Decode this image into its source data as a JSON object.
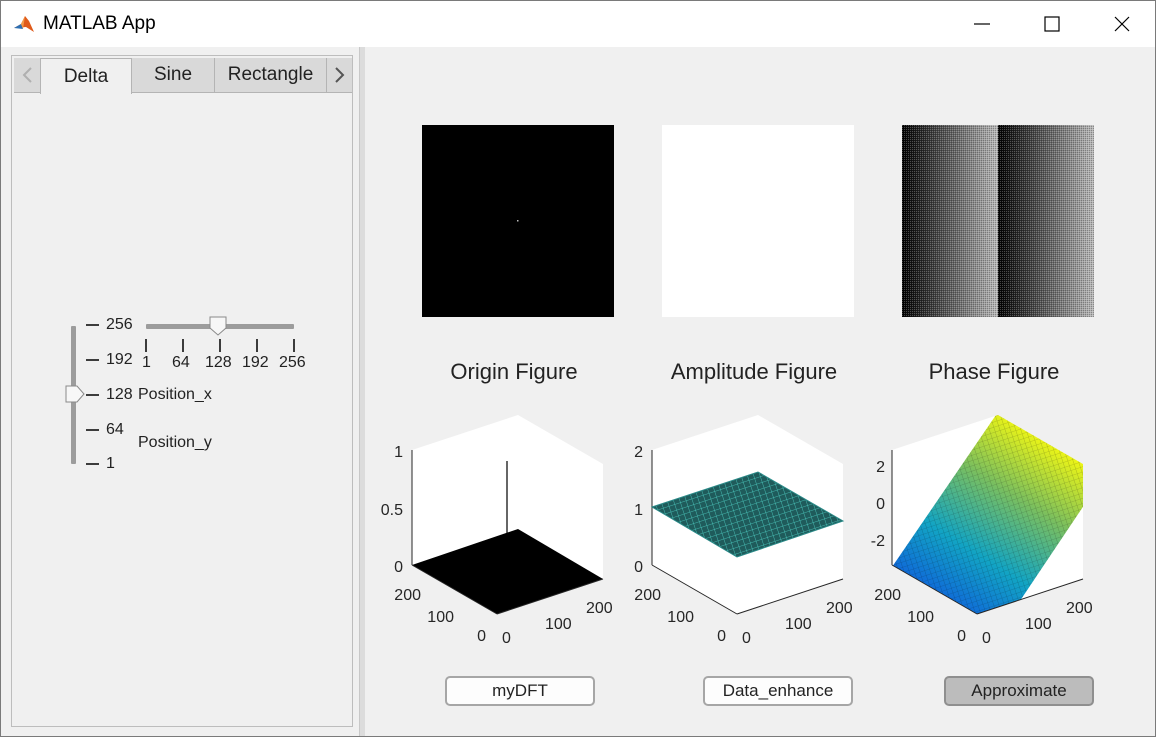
{
  "window": {
    "title": "MATLAB App",
    "app_icon": "matlab-icon",
    "controls": [
      "minimize-icon",
      "maximize-icon",
      "close-icon"
    ]
  },
  "tabs": {
    "prev_icon": "chevron-left-icon",
    "next_icon": "chevron-right-icon",
    "items": [
      {
        "label": "Delta",
        "active": true
      },
      {
        "label": "Sine",
        "active": false
      },
      {
        "label": "Rectangle",
        "active": false
      }
    ]
  },
  "sliders": {
    "position_x": {
      "label": "Position_x",
      "min": 1,
      "max": 256,
      "value": 128,
      "ticks": [
        "1",
        "64",
        "128",
        "192",
        "256"
      ]
    },
    "position_y": {
      "label": "Position_y",
      "min": 1,
      "max": 256,
      "value": 128,
      "ticks": [
        "256",
        "192",
        "128",
        "64",
        "1"
      ]
    }
  },
  "figures": {
    "origin": {
      "title": "Origin Figure",
      "colors": {
        "bg": "#000000",
        "dot": "#bbbbbb"
      }
    },
    "amplitude": {
      "title": "Amplitude Figure",
      "colors": {
        "bg": "#ffffff"
      }
    },
    "phase": {
      "title": "Phase Figure"
    }
  },
  "plots3d": [
    {
      "z_ticks": [
        "1",
        "0.5",
        "0"
      ],
      "x_ticks": [
        "0",
        "100",
        "200"
      ],
      "y_ticks": [
        "200",
        "100",
        "0"
      ],
      "surface": "black-plane-with-spike"
    },
    {
      "z_ticks": [
        "2",
        "1",
        "0"
      ],
      "x_ticks": [
        "0",
        "100",
        "200"
      ],
      "y_ticks": [
        "200",
        "100",
        "0"
      ],
      "surface": "teal-flat-mesh"
    },
    {
      "z_ticks": [
        "2",
        "0",
        "-2"
      ],
      "x_ticks": [
        "0",
        "100",
        "200"
      ],
      "y_ticks": [
        "200",
        "100",
        "0"
      ],
      "surface": "parula-ramp"
    }
  ],
  "buttons": {
    "mydft": "myDFT",
    "data_enhance": "Data_enhance",
    "approximate": "Approximate"
  }
}
